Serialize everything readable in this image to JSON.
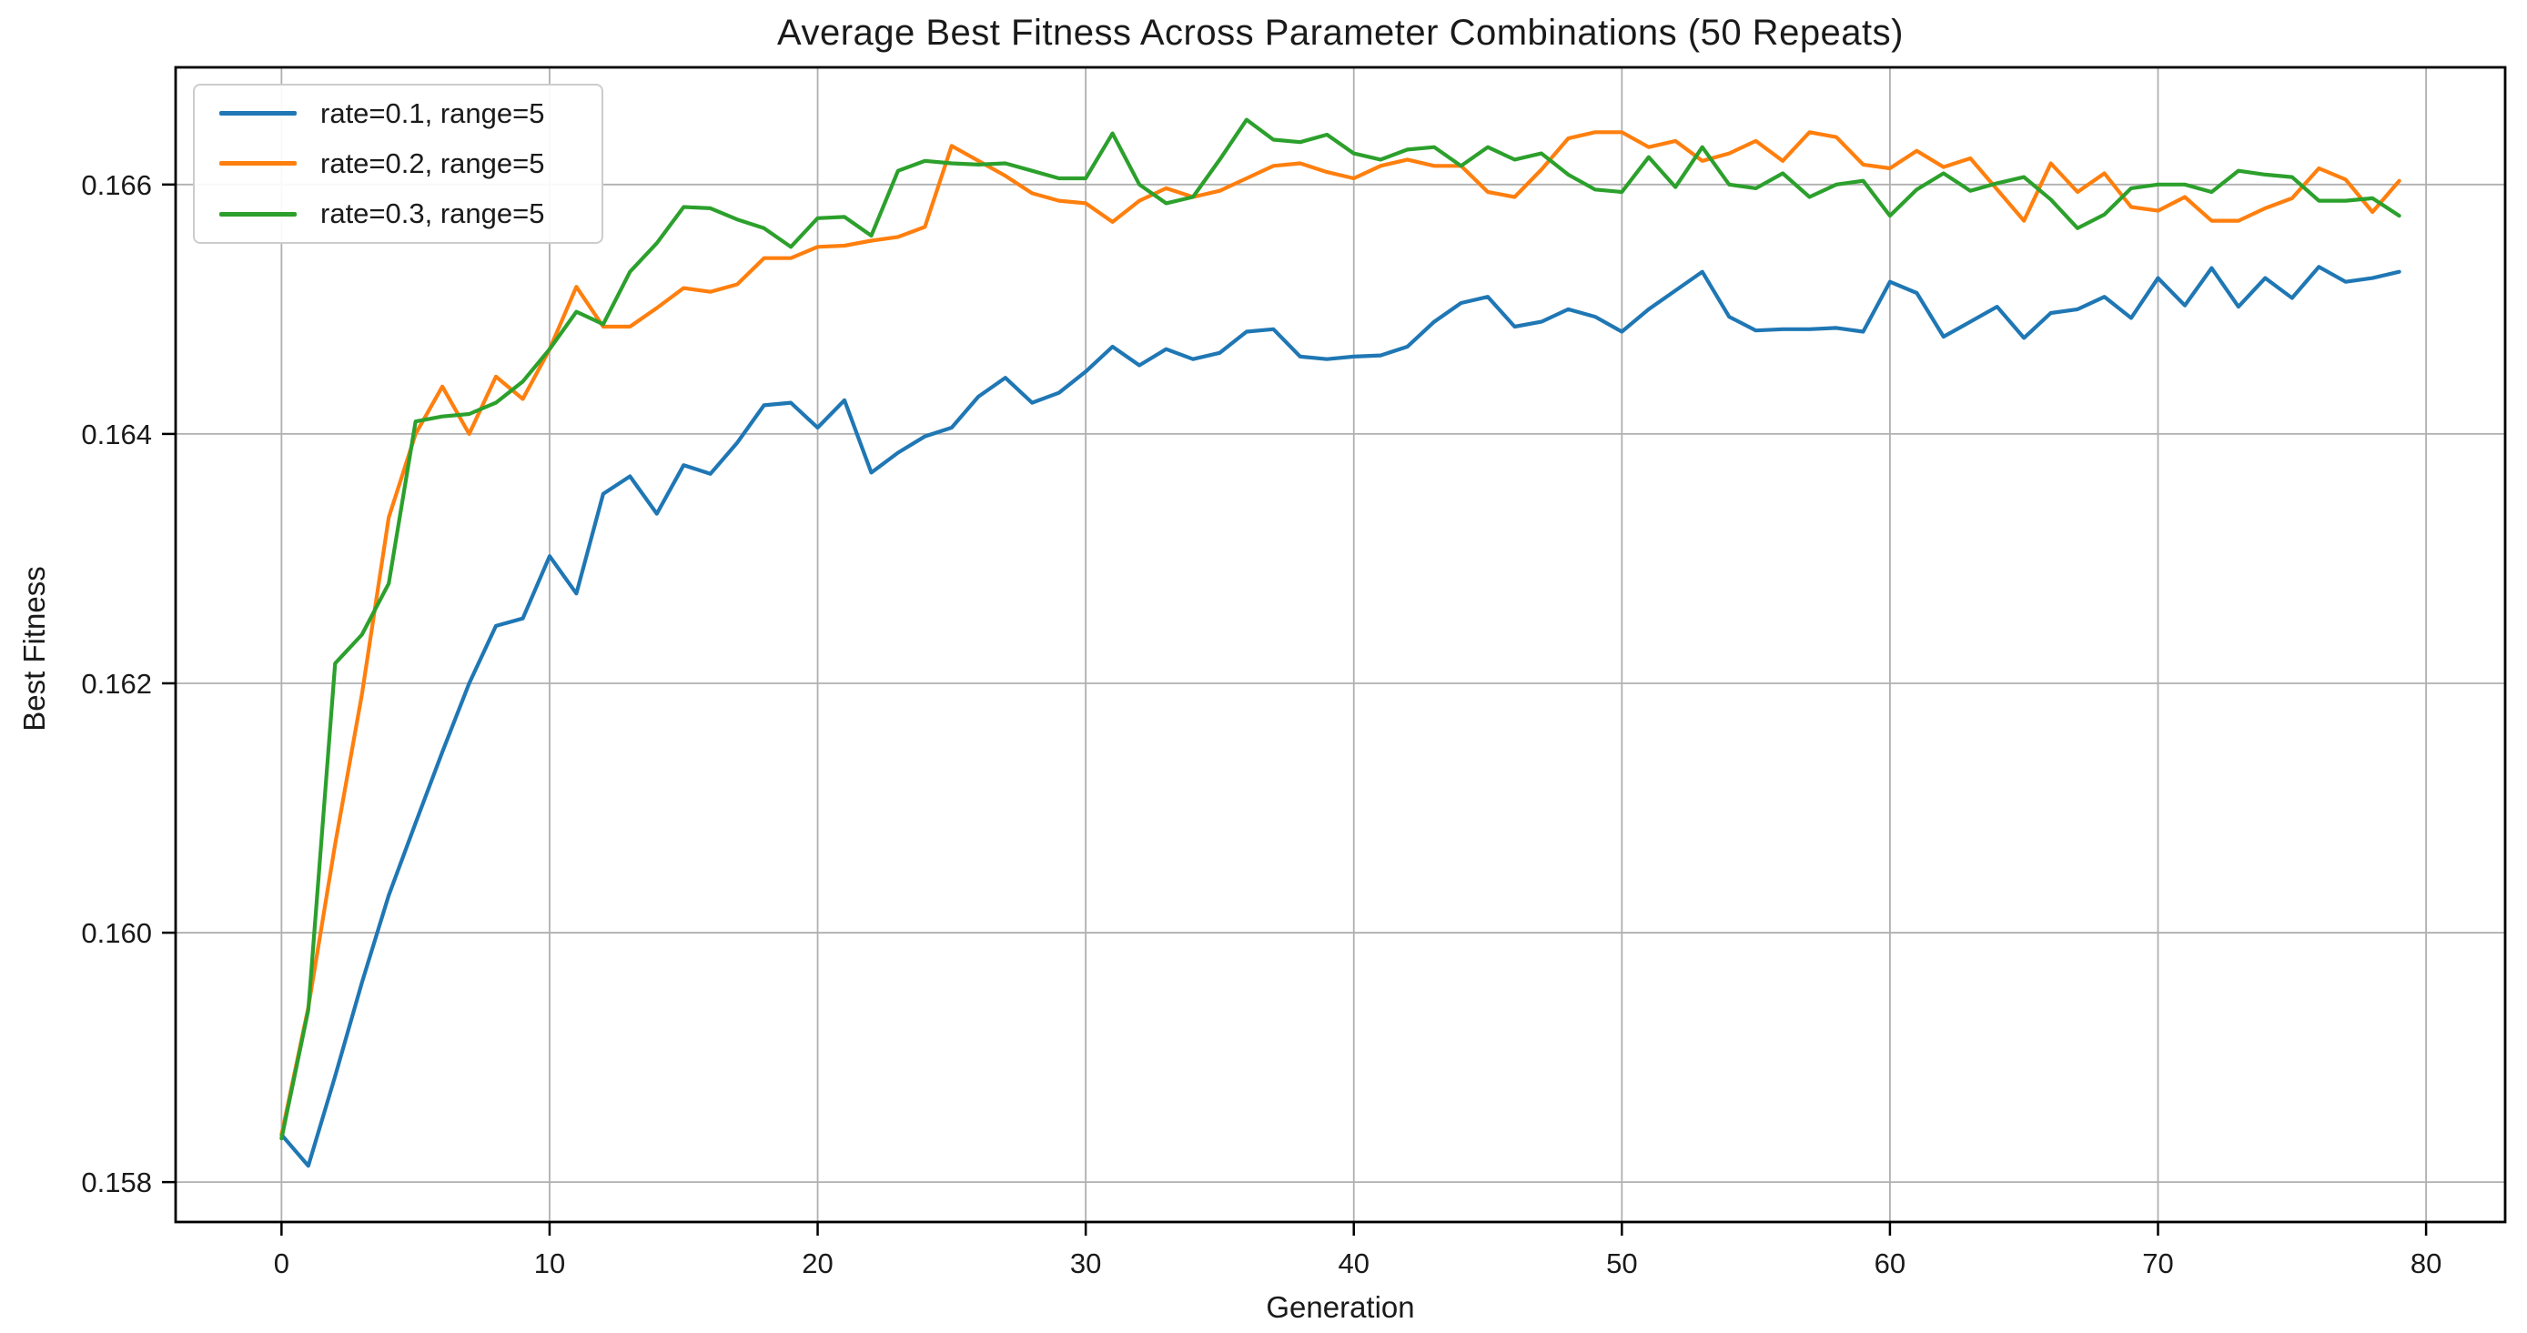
{
  "chart_data": {
    "type": "line",
    "title": "Average Best Fitness Across Parameter Combinations (50 Repeats)",
    "xlabel": "Generation",
    "ylabel": "Best Fitness",
    "x_start": 0,
    "x_step": 1,
    "xticks": [
      0,
      10,
      20,
      30,
      40,
      50,
      60,
      70,
      80
    ],
    "yticks": [
      0.158,
      0.16,
      0.162,
      0.164,
      0.166
    ],
    "xlim": [
      -3.95,
      82.95
    ],
    "ylim": [
      0.15768,
      0.16694
    ],
    "grid": true,
    "legend_position": "upper left",
    "grid_color": "#b0b0b0",
    "spine_color": "#000000",
    "text_color": "#1a1a1a",
    "series": [
      {
        "name": "rate=0.1, range=5",
        "color": "#1f77b4",
        "values": [
          0.15838,
          0.15813,
          0.15885,
          0.1596,
          0.1603,
          0.16088,
          0.16145,
          0.162,
          0.16246,
          0.16252,
          0.16302,
          0.16272,
          0.16352,
          0.16366,
          0.16336,
          0.16375,
          0.16368,
          0.16393,
          0.16423,
          0.16425,
          0.16405,
          0.16427,
          0.16369,
          0.16385,
          0.16398,
          0.16405,
          0.1643,
          0.16445,
          0.16425,
          0.16433,
          0.1645,
          0.1647,
          0.16455,
          0.16468,
          0.1646,
          0.16465,
          0.16482,
          0.16484,
          0.16462,
          0.1646,
          0.16462,
          0.16463,
          0.1647,
          0.1649,
          0.16505,
          0.1651,
          0.16486,
          0.1649,
          0.165,
          0.16494,
          0.16482,
          0.165,
          0.16515,
          0.1653,
          0.16494,
          0.16483,
          0.16484,
          0.16484,
          0.16485,
          0.16482,
          0.16522,
          0.16513,
          0.16478,
          0.1649,
          0.16502,
          0.16477,
          0.16497,
          0.165,
          0.1651,
          0.16493,
          0.16525,
          0.16503,
          0.16533,
          0.16502,
          0.16525,
          0.16509,
          0.16534,
          0.16522,
          0.16525,
          0.1653
        ]
      },
      {
        "name": "rate=0.2, range=5",
        "color": "#ff7f0e",
        "values": [
          0.15838,
          0.1594,
          0.16071,
          0.16191,
          0.16333,
          0.164,
          0.16438,
          0.164,
          0.16446,
          0.16428,
          0.16468,
          0.16518,
          0.16486,
          0.16486,
          0.16501,
          0.16517,
          0.16514,
          0.1652,
          0.16541,
          0.16541,
          0.1655,
          0.16551,
          0.16555,
          0.16558,
          0.16566,
          0.16631,
          0.16619,
          0.16607,
          0.16593,
          0.16587,
          0.16585,
          0.1657,
          0.16587,
          0.16597,
          0.1659,
          0.16595,
          0.16605,
          0.16615,
          0.16617,
          0.1661,
          0.16605,
          0.16615,
          0.1662,
          0.16615,
          0.16615,
          0.16594,
          0.1659,
          0.16612,
          0.16637,
          0.16642,
          0.16642,
          0.1663,
          0.16635,
          0.16619,
          0.16625,
          0.16635,
          0.16619,
          0.16642,
          0.16638,
          0.16616,
          0.16613,
          0.16627,
          0.16614,
          0.16621,
          0.16596,
          0.16571,
          0.16617,
          0.16594,
          0.16609,
          0.16582,
          0.16579,
          0.1659,
          0.16571,
          0.16571,
          0.16581,
          0.16589,
          0.16613,
          0.16604,
          0.16578,
          0.16603
        ]
      },
      {
        "name": "rate=0.3, range=5",
        "color": "#2ca02c",
        "values": [
          0.15835,
          0.15938,
          0.16216,
          0.16239,
          0.1628,
          0.1641,
          0.16414,
          0.16416,
          0.16425,
          0.16442,
          0.16468,
          0.16498,
          0.16488,
          0.1653,
          0.16553,
          0.16582,
          0.16581,
          0.16572,
          0.16565,
          0.1655,
          0.16573,
          0.16574,
          0.16559,
          0.16611,
          0.16619,
          0.16617,
          0.16616,
          0.16617,
          0.16611,
          0.16605,
          0.16605,
          0.16641,
          0.166,
          0.16585,
          0.1659,
          0.1662,
          0.16652,
          0.16636,
          0.16634,
          0.1664,
          0.16625,
          0.1662,
          0.16628,
          0.1663,
          0.16615,
          0.1663,
          0.1662,
          0.16625,
          0.16608,
          0.16596,
          0.16594,
          0.16622,
          0.16598,
          0.1663,
          0.166,
          0.16597,
          0.16609,
          0.1659,
          0.166,
          0.16603,
          0.16575,
          0.16596,
          0.16609,
          0.16595,
          0.16601,
          0.16606,
          0.16588,
          0.16565,
          0.16576,
          0.16597,
          0.166,
          0.166,
          0.16594,
          0.16611,
          0.16608,
          0.16606,
          0.16587,
          0.16587,
          0.16589,
          0.16575
        ]
      }
    ]
  }
}
